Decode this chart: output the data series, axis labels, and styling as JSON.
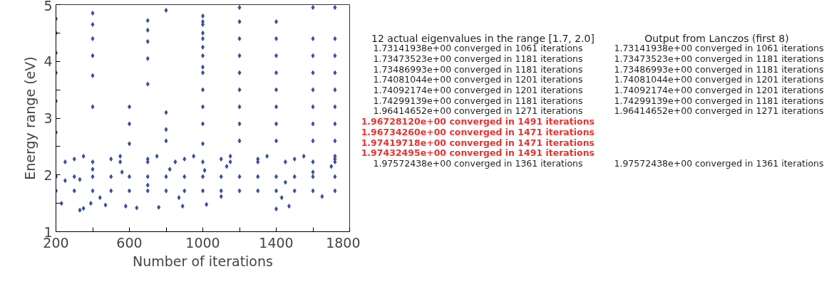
{
  "chart_data": {
    "type": "scatter",
    "xlabel": "Number of iterations",
    "ylabel": "Energy range (eV)",
    "xlim": [
      200,
      1800
    ],
    "ylim": [
      1,
      5
    ],
    "xticks": [
      200,
      {
        "value": 400,
        "label": null
      },
      600,
      {
        "value": 800,
        "label": null
      },
      1000,
      {
        "value": 1200,
        "label": null
      },
      1400,
      {
        "value": 1600,
        "label": null
      },
      1800
    ],
    "yticks": [
      1,
      {
        "value": 1.5,
        "label": null
      },
      2,
      {
        "value": 2.5,
        "label": null
      },
      3,
      {
        "value": 3.5,
        "label": null
      },
      4,
      {
        "value": 4.5,
        "label": null
      },
      5
    ],
    "grid": false,
    "marker": "diamond",
    "series": [
      {
        "color": "#3a4fa3",
        "x": [
          200,
          300,
          400,
          500,
          600,
          700,
          800,
          900,
          1000,
          1100,
          1200,
          1300,
          1400,
          1500,
          1600,
          1720,
          200,
          300,
          400,
          500,
          600,
          700,
          800,
          900,
          1000,
          1100,
          1200,
          1300,
          1400,
          1500,
          1600,
          1720,
          250,
          400,
          550,
          700,
          850,
          1000,
          1150,
          1300,
          1450,
          1600,
          1720,
          300,
          500,
          700,
          900,
          1100,
          1300,
          1500,
          1720,
          350,
          550,
          750,
          950,
          1150,
          1350,
          1550,
          1720,
          230,
          330,
          350,
          390,
          440,
          470,
          580,
          640,
          760,
          870,
          890,
          1020,
          1100,
          1400,
          1430,
          1470,
          1650,
          250,
          330,
          400,
          560,
          700,
          820,
          1010,
          1130,
          1450,
          1600,
          1700,
          200,
          400,
          800,
          1200,
          200,
          400,
          700,
          1000,
          200,
          400,
          700,
          1000,
          200,
          400,
          700,
          1000,
          200,
          400,
          700,
          1000,
          200,
          400,
          700,
          1000,
          600,
          800,
          600,
          800,
          600,
          800,
          1000,
          1000,
          1000,
          1000,
          1000,
          1000,
          1000,
          1000,
          1200,
          1200,
          1200,
          1200,
          1200,
          1200,
          1200,
          1200,
          1400,
          1400,
          1400,
          1400,
          1400,
          1400,
          1400,
          1400,
          1600,
          1600,
          1600,
          1600,
          1600,
          1600,
          1600,
          1600,
          1720,
          1720,
          1720,
          1720,
          1720,
          1720,
          1720,
          1720
        ],
        "values": [
          1.72,
          1.72,
          1.72,
          1.72,
          1.72,
          1.72,
          1.72,
          1.72,
          1.72,
          1.72,
          1.72,
          1.72,
          1.72,
          1.72,
          1.72,
          1.72,
          1.97,
          1.97,
          1.97,
          1.97,
          1.97,
          1.97,
          1.97,
          1.97,
          1.97,
          1.97,
          1.97,
          1.97,
          1.97,
          1.97,
          1.97,
          1.97,
          2.23,
          2.23,
          2.23,
          2.23,
          2.23,
          2.23,
          2.23,
          2.23,
          2.23,
          2.23,
          2.23,
          2.28,
          2.28,
          2.28,
          2.28,
          2.28,
          2.28,
          2.28,
          2.28,
          2.33,
          2.33,
          2.33,
          2.33,
          2.33,
          2.33,
          2.33,
          2.33,
          1.5,
          1.38,
          1.41,
          1.5,
          1.6,
          1.47,
          1.45,
          1.42,
          1.43,
          1.6,
          1.45,
          1.48,
          1.62,
          1.4,
          1.6,
          1.45,
          1.62,
          1.9,
          1.92,
          2.1,
          2.05,
          1.82,
          2.1,
          2.08,
          2.15,
          1.87,
          2.05,
          2.15,
          4.75,
          4.85,
          4.9,
          4.95,
          4.5,
          4.65,
          4.72,
          4.8,
          4.15,
          4.4,
          4.55,
          4.65,
          3.8,
          4.1,
          4.35,
          4.5,
          3.3,
          3.75,
          4.05,
          4.25,
          2.75,
          3.2,
          3.6,
          3.9,
          2.55,
          2.6,
          2.9,
          2.8,
          3.2,
          3.1,
          2.55,
          2.9,
          3.2,
          3.5,
          3.8,
          4.1,
          4.4,
          4.7,
          2.6,
          2.9,
          3.2,
          3.5,
          3.8,
          4.1,
          4.4,
          4.7,
          2.6,
          2.9,
          3.2,
          3.5,
          3.8,
          4.1,
          4.4,
          4.7,
          2.6,
          2.9,
          3.2,
          3.5,
          3.8,
          4.1,
          4.4,
          4.95,
          2.6,
          2.9,
          3.2,
          3.5,
          3.8,
          4.1,
          4.4,
          4.95
        ]
      }
    ],
    "annotations": [
      "12 actual eigenvalues in the range [1.7, 2.0]",
      "1.73141938e+00 converged in  1061 iterations",
      "1.73473523e+00 converged in  1181 iterations",
      "1.73486993e+00 converged in  1181 iterations",
      "1.74081044e+00 converged in  1201 iterations",
      "1.74092174e+00 converged in  1201 iterations",
      "1.74299139e+00 converged in  1181 iterations",
      "1.96414652e+00 converged in  1271 iterations",
      "1.96728120e+00 converged in  1491 iterations",
      "1.96734260e+00 converged in  1471 iterations",
      "1.97419718e+00 converged in  1471 iterations",
      "1.97432495e+00 converged in  1491 iterations",
      "1.97572438e+00 converged in  1361 iterations",
      "Output from Lanczos (first 8)",
      "1.73141938e+00 converged in  1061 iterations",
      "1.73473523e+00 converged in  1181 iterations",
      "1.73486993e+00 converged in  1181 iterations",
      "1.74081044e+00 converged in  1201 iterations",
      "1.74092174e+00 converged in  1201 iterations",
      "1.74299139e+00 converged in  1181 iterations",
      "1.96414652e+00 converged in  1271 iterations",
      "1.97572438e+00 converged in  1361 iterations"
    ]
  }
}
